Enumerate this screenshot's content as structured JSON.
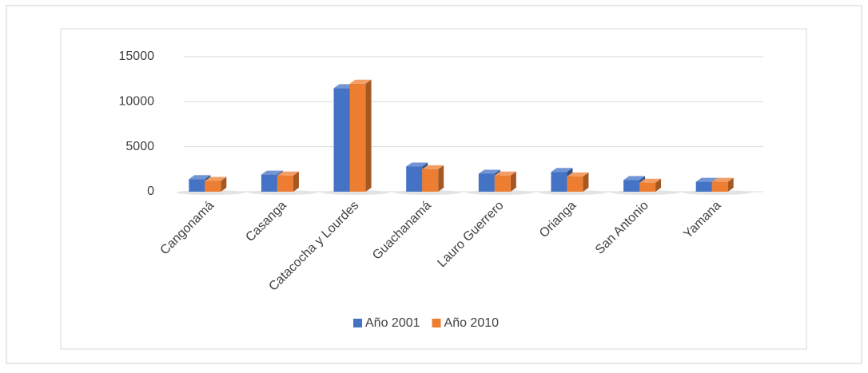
{
  "chart_data": {
    "type": "bar",
    "categories": [
      "Cangonamá",
      "Casanga",
      "Catacocha y Lourdes",
      "Guachanamá",
      "Lauro Guerrero",
      "Orianga",
      "San Antonio",
      "Yamana"
    ],
    "series": [
      {
        "name": "Año 2001",
        "color": "#4472c4",
        "values": [
          1400,
          1900,
          11500,
          2800,
          2000,
          2200,
          1300,
          1100
        ]
      },
      {
        "name": "Año 2010",
        "color": "#ed7d31",
        "values": [
          1200,
          1800,
          12000,
          2500,
          1800,
          1700,
          1000,
          1100
        ]
      }
    ],
    "ylim": [
      0,
      15000
    ],
    "yticks": [
      0,
      5000,
      10000,
      15000
    ],
    "grid": true,
    "legend": "bottom"
  }
}
